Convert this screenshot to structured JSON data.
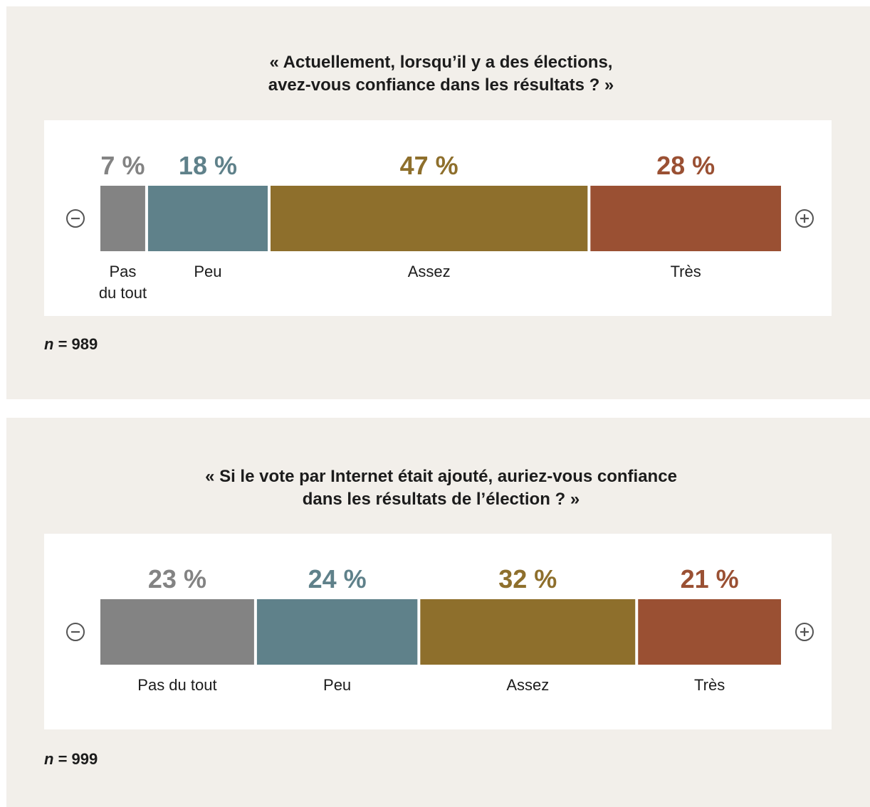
{
  "colors": {
    "pas_du_tout": "#838383",
    "peu": "#5f818a",
    "assez": "#8e6f2c",
    "tres": "#9a5033"
  },
  "icons": {
    "left": "minus-circle-icon",
    "right": "plus-circle-icon"
  },
  "chart_data": [
    {
      "type": "bar",
      "orientation": "horizontal-stacked",
      "title_lines": [
        "« Actuellement, lorsqu’il y a des élections,",
        "avez-vous confiance dans les résultats ? »"
      ],
      "categories": [
        "Pas du tout",
        "Peu",
        "Assez",
        "Très"
      ],
      "category_label_lines": [
        [
          "Pas",
          "du tout"
        ],
        [
          "Peu"
        ],
        [
          "Assez"
        ],
        [
          "Très"
        ]
      ],
      "values": [
        7,
        18,
        47,
        28
      ],
      "value_labels": [
        "7 %",
        "18 %",
        "47 %",
        "28 %"
      ],
      "n_prefix": "n",
      "n_suffix": " = 989"
    },
    {
      "type": "bar",
      "orientation": "horizontal-stacked",
      "title_lines": [
        "« Si le vote par Internet était ajouté, auriez-vous confiance",
        "dans les résultats de l’élection ? »"
      ],
      "categories": [
        "Pas du tout",
        "Peu",
        "Assez",
        "Très"
      ],
      "category_label_lines": [
        [
          "Pas du tout"
        ],
        [
          "Peu"
        ],
        [
          "Assez"
        ],
        [
          "Très"
        ]
      ],
      "values": [
        23,
        24,
        32,
        21
      ],
      "value_labels": [
        "23 %",
        "24 %",
        "32 %",
        "21 %"
      ],
      "n_prefix": "n",
      "n_suffix": " = 999"
    }
  ]
}
